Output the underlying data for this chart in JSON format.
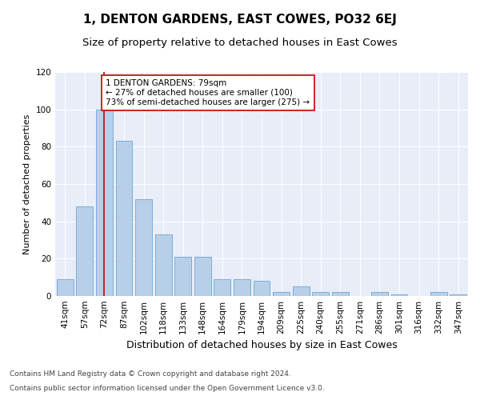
{
  "title": "1, DENTON GARDENS, EAST COWES, PO32 6EJ",
  "subtitle": "Size of property relative to detached houses in East Cowes",
  "xlabel": "Distribution of detached houses by size in East Cowes",
  "ylabel": "Number of detached properties",
  "categories": [
    "41sqm",
    "57sqm",
    "72sqm",
    "87sqm",
    "102sqm",
    "118sqm",
    "133sqm",
    "148sqm",
    "164sqm",
    "179sqm",
    "194sqm",
    "209sqm",
    "225sqm",
    "240sqm",
    "255sqm",
    "271sqm",
    "286sqm",
    "301sqm",
    "316sqm",
    "332sqm",
    "347sqm"
  ],
  "values": [
    9,
    48,
    100,
    83,
    52,
    33,
    21,
    21,
    9,
    9,
    8,
    2,
    5,
    2,
    2,
    0,
    2,
    1,
    0,
    2,
    1
  ],
  "bar_color": "#b8cfe8",
  "bar_edge_color": "#7aaed6",
  "marker_bin_index": 2,
  "vline_color": "#cc0000",
  "annotation_text": "1 DENTON GARDENS: 79sqm\n← 27% of detached houses are smaller (100)\n73% of semi-detached houses are larger (275) →",
  "annotation_box_color": "#ffffff",
  "annotation_box_edgecolor": "#cc0000",
  "ylim": [
    0,
    120
  ],
  "yticks": [
    0,
    20,
    40,
    60,
    80,
    100,
    120
  ],
  "background_color": "#e8edf8",
  "grid_color": "#ffffff",
  "footer_line1": "Contains HM Land Registry data © Crown copyright and database right 2024.",
  "footer_line2": "Contains public sector information licensed under the Open Government Licence v3.0.",
  "title_fontsize": 11,
  "subtitle_fontsize": 9.5,
  "xlabel_fontsize": 9,
  "ylabel_fontsize": 8,
  "tick_fontsize": 7.5,
  "annotation_fontsize": 7.5,
  "footer_fontsize": 6.5
}
